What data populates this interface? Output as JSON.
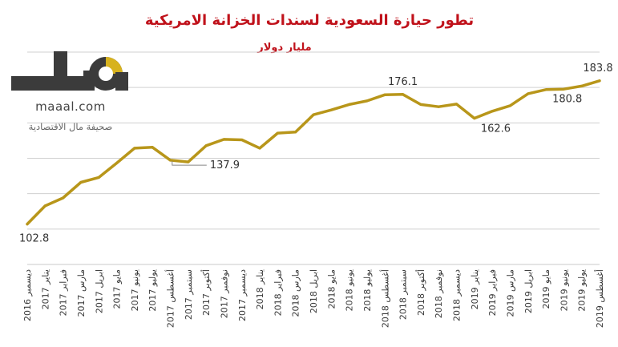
{
  "chart_data": {
    "type": "line",
    "title": "تطور حيازة السعودية لسندات الخزانة الامريكية",
    "subtitle": "مليار دولار",
    "categories": [
      "ديسمبر 2016",
      "يناير 2017",
      "فبراير 2017",
      "مارس 2017",
      "ابريل 2017",
      "مايو 2017",
      "يونيو 2017",
      "يوليو 2017",
      "أغسطس 2017",
      "سبتمبر 2017",
      "أكتوبر 2017",
      "نوفمبر 2017",
      "ديسمبر 2017",
      "يناير 2018",
      "فبراير 2018",
      "مارس 2018",
      "ابريل 2018",
      "مايو 2018",
      "يونيو 2018",
      "يوليو 2018",
      "أغسطس 2018",
      "سبتمبر 2018",
      "أكتوبر 2018",
      "نوفمبر 2018",
      "ديسمبر 2018",
      "يناير 2019",
      "فبراير 2019",
      "مارس 2019",
      "ابريل 2019",
      "مايو 2019",
      "يونيو 2019",
      "يوليو 2019",
      "أغسطس 2019"
    ],
    "values": [
      102.8,
      113.1,
      117.6,
      126.4,
      129.2,
      137.3,
      145.7,
      146.2,
      138.9,
      137.9,
      147.1,
      150.7,
      150.4,
      145.7,
      154.2,
      154.8,
      164.6,
      167.3,
      170.4,
      172.4,
      175.9,
      176.1,
      170.4,
      169.1,
      170.6,
      162.6,
      166.6,
      169.7,
      176.5,
      178.8,
      179.1,
      180.8,
      183.8
    ],
    "data_labels": [
      {
        "index": 0,
        "text": "102.8"
      },
      {
        "index": 9,
        "text": "137.9"
      },
      {
        "index": 21,
        "text": "176.1"
      },
      {
        "index": 25,
        "text": "162.6"
      },
      {
        "index": 31,
        "text": "180.8"
      },
      {
        "index": 32,
        "text": "183.8"
      }
    ],
    "ylim": [
      80,
      200
    ],
    "grid": true,
    "line_color": "#b8961a"
  },
  "logo": {
    "mark": "مال",
    "url": "maaal.com",
    "tagline": "صحيفة مال الاقتصادية"
  }
}
